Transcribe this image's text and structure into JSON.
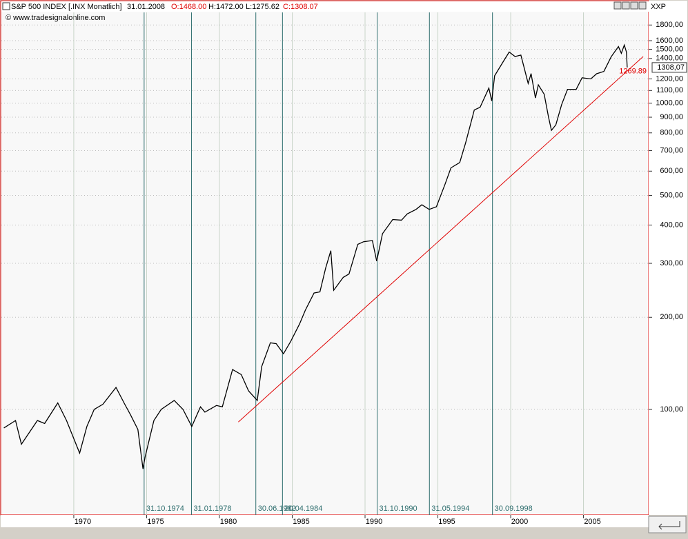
{
  "chart_data": {
    "type": "line",
    "title": "S&P 500 INDEX [.INX  Monatlich]",
    "header": {
      "date": "31.01.2008",
      "open": "O:1468.00",
      "high": "H:1472.00",
      "low": "L:1275.62",
      "close": "C:1308.07"
    },
    "source": "© www.tradesignalonline.com",
    "axis_code": "XXP",
    "log_scale": true,
    "grid": true,
    "color": "#000000",
    "x": [
      1965.2,
      1966.0,
      1966.4,
      1967.5,
      1968.0,
      1968.9,
      1969.5,
      1970.4,
      1970.9,
      1971.4,
      1972.0,
      1972.9,
      1973.5,
      1973.9,
      1974.4,
      1974.75,
      1974.9,
      1975.5,
      1976.0,
      1976.9,
      1977.5,
      1978.1,
      1978.7,
      1979.0,
      1979.8,
      1980.2,
      1980.9,
      1981.5,
      1982.0,
      1982.6,
      1982.9,
      1983.5,
      1983.9,
      1984.4,
      1984.9,
      1985.5,
      1985.9,
      1986.5,
      1986.9,
      1987.3,
      1987.65,
      1987.85,
      1988.5,
      1988.9,
      1989.5,
      1989.9,
      1990.5,
      1990.8,
      1991.2,
      1991.9,
      1992.5,
      1992.9,
      1993.5,
      1993.9,
      1994.4,
      1994.9,
      1995.5,
      1995.9,
      1996.5,
      1996.9,
      1997.5,
      1997.9,
      1998.5,
      1998.7,
      1998.9,
      1999.5,
      1999.9,
      2000.3,
      2000.7,
      2000.9,
      2001.2,
      2001.4,
      2001.7,
      2001.9,
      2002.3,
      2002.6,
      2002.8,
      2003.1,
      2003.5,
      2003.9,
      2004.5,
      2004.9,
      2005.5,
      2005.9,
      2006.4,
      2006.9,
      2007.4,
      2007.6,
      2007.8,
      2007.95,
      2008.0
    ],
    "values": [
      87,
      92,
      77,
      92,
      90,
      105,
      92,
      72,
      88,
      100,
      104,
      118,
      104,
      96,
      86,
      64,
      70,
      92,
      100,
      107,
      100,
      88,
      102,
      98,
      103,
      102,
      135,
      130,
      115,
      107,
      138,
      165,
      164,
      152,
      167,
      190,
      211,
      240,
      242,
      290,
      330,
      245,
      270,
      277,
      346,
      353,
      356,
      305,
      375,
      417,
      415,
      435,
      450,
      466,
      450,
      459,
      545,
      615,
      640,
      740,
      950,
      970,
      1120,
      1017,
      1229,
      1370,
      1469,
      1420,
      1436,
      1320,
      1160,
      1250,
      1040,
      1148,
      1070,
      900,
      815,
      850,
      990,
      1110,
      1110,
      1211,
      1200,
      1248,
      1270,
      1418,
      1530,
      1455,
      1549,
      1468,
      1308
    ],
    "xlim": [
      1965.17,
      2009.38
    ],
    "ylim": [
      45.5,
      2150
    ],
    "xticks": [
      1970,
      1975,
      1980,
      1985,
      1990,
      1995,
      2000,
      2005
    ],
    "yticks": [
      {
        "value": 100,
        "label": "100,00"
      },
      {
        "value": 200,
        "label": "200,00"
      },
      {
        "value": 300,
        "label": "300,00"
      },
      {
        "value": 400,
        "label": "400,00"
      },
      {
        "value": 500,
        "label": "500,00"
      },
      {
        "value": 600,
        "label": "600,00"
      },
      {
        "value": 700,
        "label": "700,00"
      },
      {
        "value": 800,
        "label": "800,00"
      },
      {
        "value": 900,
        "label": "900,00"
      },
      {
        "value": 1000,
        "label": "1000,00"
      },
      {
        "value": 1100,
        "label": "1100,00"
      },
      {
        "value": 1200,
        "label": "1200,00"
      },
      {
        "value": 1400,
        "label": "1400,00"
      },
      {
        "value": 1500,
        "label": "1500,00"
      },
      {
        "value": 1600,
        "label": "1600,00"
      },
      {
        "value": 1800,
        "label": "1800,00"
      }
    ],
    "markers": [
      {
        "x": 1974.83,
        "label": "31.10.1974"
      },
      {
        "x": 1978.08,
        "label": "31.01.1978"
      },
      {
        "x": 1982.5,
        "label": "30.06.1982"
      },
      {
        "x": 1984.33,
        "label": "30.04.1984"
      },
      {
        "x": 1990.83,
        "label": "31.10.1990"
      },
      {
        "x": 1994.42,
        "label": "31.05.1994"
      },
      {
        "x": 1998.75,
        "label": "30.09.1998"
      }
    ],
    "marker_color": "#2e6e6e",
    "trendline": {
      "x": [
        1981.3,
        2009.1
      ],
      "values": [
        91,
        1420
      ],
      "color": "#e00000",
      "label": {
        "value": 1269.89,
        "label": "1269.89"
      }
    },
    "last_price": {
      "value": 1308.07,
      "label": "1308,07"
    }
  }
}
